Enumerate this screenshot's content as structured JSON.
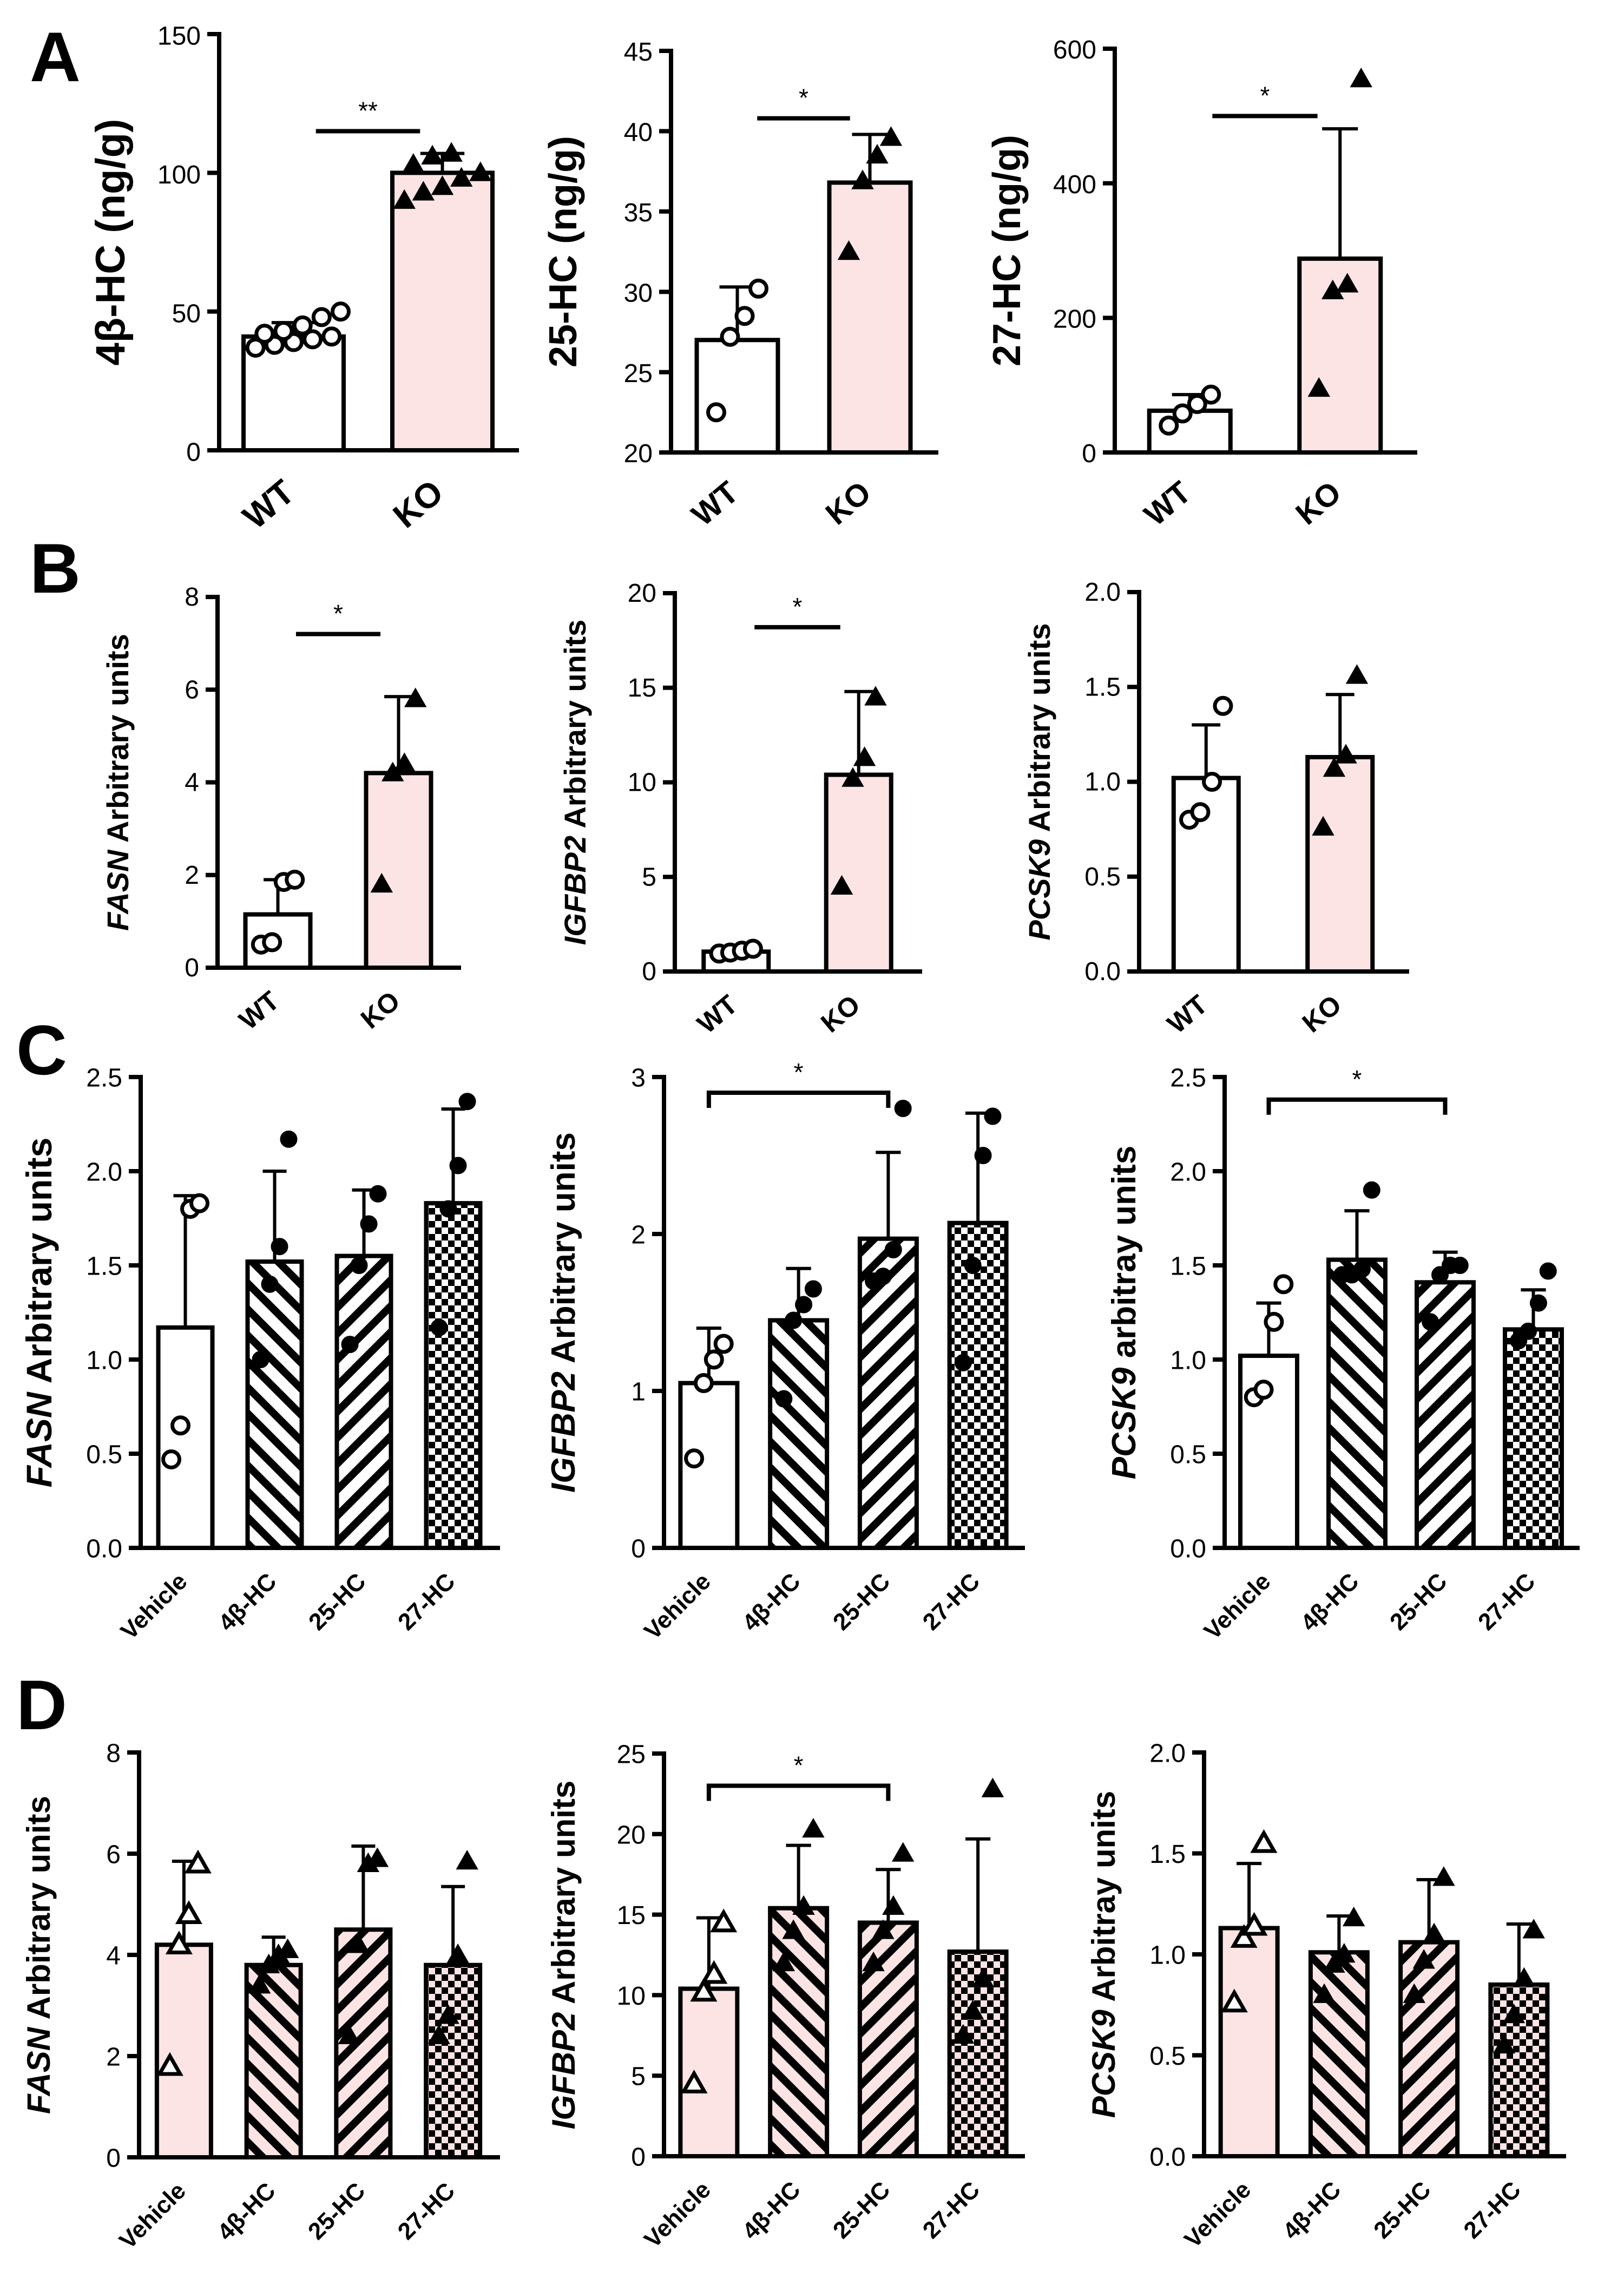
{
  "colors": {
    "pink": "#fce4e4",
    "white": "#ffffff",
    "ink": "#000000"
  },
  "panel_letters": [
    "A",
    "B",
    "C",
    "D"
  ],
  "chart_data": [
    {
      "id": "A1",
      "panel": "A",
      "type": "bar",
      "ylabel_parts": [
        {
          "t": "4β-HC (ng/g)",
          "i": false
        }
      ],
      "ylim": [
        0,
        150
      ],
      "yticks": [
        0,
        50,
        100,
        150
      ],
      "ytick_labels": [
        "0",
        "50",
        "100",
        "150"
      ],
      "categories": [
        "WT",
        "KO"
      ],
      "values": [
        41,
        100
      ],
      "errors": [
        5,
        7
      ],
      "fills": [
        "white",
        "pink"
      ],
      "patterns": [
        "none",
        "none"
      ],
      "markers": [
        "circle-open",
        "triangle-filled"
      ],
      "points": [
        [
          37,
          38,
          39,
          40,
          41,
          42,
          43,
          45,
          48,
          50
        ],
        [
          90,
          93,
          95,
          98,
          100,
          103,
          106,
          107
        ]
      ],
      "significance": [
        {
          "label": "**",
          "from": 0,
          "to": 1,
          "y": 115,
          "style": "line"
        }
      ]
    },
    {
      "id": "A2",
      "panel": "A",
      "type": "bar",
      "ylabel_parts": [
        {
          "t": "25-HC (ng/g)",
          "i": false
        }
      ],
      "ylim": [
        20,
        45
      ],
      "yticks": [
        20,
        25,
        30,
        35,
        40,
        45
      ],
      "ytick_labels": [
        "20",
        "25",
        "30",
        "35",
        "40",
        "45"
      ],
      "categories": [
        "WT",
        "KO"
      ],
      "values": [
        27,
        36.8
      ],
      "errors": [
        3.3,
        3
      ],
      "fills": [
        "white",
        "pink"
      ],
      "patterns": [
        "none",
        "none"
      ],
      "markers": [
        "circle-open",
        "triangle-filled"
      ],
      "points": [
        [
          22.5,
          27.2,
          28.5,
          30.2
        ],
        [
          32.5,
          36.9,
          38.5,
          39.6
        ]
      ],
      "significance": [
        {
          "label": "*",
          "from": 0,
          "to": 1,
          "y": 40.8,
          "style": "line"
        }
      ]
    },
    {
      "id": "A3",
      "panel": "A",
      "type": "bar",
      "ylabel_parts": [
        {
          "t": "27-HC (ng/g)",
          "i": false
        }
      ],
      "ylim": [
        0,
        600
      ],
      "yticks": [
        0,
        200,
        400,
        600
      ],
      "ytick_labels": [
        "0",
        "200",
        "400",
        "600"
      ],
      "categories": [
        "WT",
        "KO"
      ],
      "values": [
        62,
        288
      ],
      "errors": [
        24,
        193
      ],
      "fills": [
        "white",
        "pink"
      ],
      "patterns": [
        "none",
        "none"
      ],
      "markers": [
        "circle-open",
        "triangle-filled"
      ],
      "points": [
        [
          40,
          58,
          72,
          86
        ],
        [
          95,
          240,
          250,
          555
        ]
      ],
      "significance": [
        {
          "label": "*",
          "from": 0,
          "to": 1,
          "y": 500,
          "style": "line"
        }
      ]
    },
    {
      "id": "B1",
      "panel": "B",
      "type": "bar",
      "ylabel_parts": [
        {
          "t": "FASN",
          "i": true
        },
        {
          "t": " Arbitrary units",
          "i": false
        }
      ],
      "ylim": [
        0,
        8
      ],
      "yticks": [
        0,
        2,
        4,
        6,
        8
      ],
      "ytick_labels": [
        "0",
        "2",
        "4",
        "6",
        "8"
      ],
      "categories": [
        "WT",
        "KO"
      ],
      "values": [
        1.15,
        4.2
      ],
      "errors": [
        0.75,
        1.65
      ],
      "fills": [
        "white",
        "pink"
      ],
      "patterns": [
        "none",
        "none"
      ],
      "markers": [
        "circle-open",
        "triangle-filled"
      ],
      "points": [
        [
          0.5,
          0.55,
          1.85,
          1.9
        ],
        [
          1.8,
          4.2,
          4.4,
          5.8
        ]
      ],
      "significance": [
        {
          "label": "*",
          "from": 0,
          "to": 1,
          "y": 7.2,
          "style": "line"
        }
      ]
    },
    {
      "id": "B2",
      "panel": "B",
      "type": "bar",
      "ylabel_parts": [
        {
          "t": "IGFBP2",
          "i": true
        },
        {
          "t": " Arbitrary units",
          "i": false
        }
      ],
      "ylim": [
        0,
        20
      ],
      "yticks": [
        0,
        5,
        10,
        15,
        20
      ],
      "ytick_labels": [
        "0",
        "5",
        "10",
        "15",
        "20"
      ],
      "categories": [
        "WT",
        "KO"
      ],
      "values": [
        1.05,
        10.4
      ],
      "errors": [
        0.2,
        4.4
      ],
      "fills": [
        "white",
        "pink"
      ],
      "patterns": [
        "none",
        "none"
      ],
      "markers": [
        "circle-open",
        "triangle-filled"
      ],
      "points": [
        [
          0.95,
          1.0,
          1.1,
          1.2
        ],
        [
          4.5,
          10.2,
          11.3,
          14.5
        ]
      ],
      "significance": [
        {
          "label": "*",
          "from": 0,
          "to": 1,
          "y": 18.2,
          "style": "line"
        }
      ]
    },
    {
      "id": "B3",
      "panel": "B",
      "type": "bar",
      "ylabel_parts": [
        {
          "t": "PCSK9",
          "i": true
        },
        {
          "t": " Arbitrary units",
          "i": false
        }
      ],
      "ylim": [
        0,
        2
      ],
      "yticks": [
        0,
        0.5,
        1,
        1.5,
        2
      ],
      "ytick_labels": [
        "0.0",
        "0.5",
        "1.0",
        "1.5",
        "2.0"
      ],
      "categories": [
        "WT",
        "KO"
      ],
      "values": [
        1.02,
        1.13
      ],
      "errors": [
        0.28,
        0.33
      ],
      "fills": [
        "white",
        "pink"
      ],
      "patterns": [
        "none",
        "none"
      ],
      "markers": [
        "circle-open",
        "triangle-filled"
      ],
      "points": [
        [
          0.8,
          0.84,
          1.0,
          1.4
        ],
        [
          0.76,
          1.07,
          1.14,
          1.56
        ]
      ],
      "significance": []
    },
    {
      "id": "C1",
      "panel": "C",
      "type": "bar",
      "ylabel_parts": [
        {
          "t": "FASN",
          "i": true
        },
        {
          "t": "  Arbitrary units",
          "i": false
        }
      ],
      "ylim": [
        0,
        2.5
      ],
      "yticks": [
        0,
        0.5,
        1,
        1.5,
        2,
        2.5
      ],
      "ytick_labels": [
        "0.0",
        "0.5",
        "1.0",
        "1.5",
        "2.0",
        "2.5"
      ],
      "categories": [
        "Vehicle",
        "4β-HC",
        "25-HC",
        "27-HC"
      ],
      "values": [
        1.17,
        1.52,
        1.55,
        1.83
      ],
      "errors": [
        0.7,
        0.48,
        0.35,
        0.5
      ],
      "fills": [
        "white",
        "white",
        "white",
        "white"
      ],
      "patterns": [
        "none",
        "bs",
        "fs",
        "check"
      ],
      "markers": [
        "circle-open",
        "circle-filled",
        "circle-filled",
        "circle-filled"
      ],
      "points": [
        [
          0.47,
          0.65,
          1.8,
          1.83
        ],
        [
          1.0,
          1.4,
          1.6,
          2.17
        ],
        [
          1.08,
          1.5,
          1.72,
          1.88
        ],
        [
          1.17,
          1.8,
          2.03,
          2.37
        ]
      ],
      "significance": []
    },
    {
      "id": "C2",
      "panel": "C",
      "type": "bar",
      "ylabel_parts": [
        {
          "t": "IGFBP2",
          "i": true
        },
        {
          "t": " Arbitrary units",
          "i": false
        }
      ],
      "ylim": [
        0,
        3
      ],
      "yticks": [
        0,
        1,
        2,
        3
      ],
      "ytick_labels": [
        "0",
        "1",
        "2",
        "3"
      ],
      "categories": [
        "Vehicle",
        "4β-HC",
        "25-HC",
        "27-HC"
      ],
      "values": [
        1.05,
        1.45,
        1.97,
        2.07
      ],
      "errors": [
        0.35,
        0.33,
        0.55,
        0.7
      ],
      "fills": [
        "white",
        "white",
        "white",
        "white"
      ],
      "patterns": [
        "none",
        "bs",
        "fs",
        "check"
      ],
      "markers": [
        "circle-open",
        "circle-filled",
        "circle-filled",
        "circle-filled"
      ],
      "points": [
        [
          0.57,
          1.05,
          1.2,
          1.3
        ],
        [
          0.95,
          1.45,
          1.55,
          1.65
        ],
        [
          1.7,
          1.73,
          1.9,
          2.8
        ],
        [
          1.18,
          1.8,
          2.5,
          2.75
        ]
      ],
      "significance": [
        {
          "label": "*",
          "from": 0,
          "to": 2,
          "y": 2.9,
          "style": "bracket"
        }
      ]
    },
    {
      "id": "C3",
      "panel": "C",
      "type": "bar",
      "ylabel_parts": [
        {
          "t": "PCSK9",
          "i": true
        },
        {
          "t": " arbitray units",
          "i": false
        }
      ],
      "ylim": [
        0,
        2.5
      ],
      "yticks": [
        0,
        0.5,
        1,
        1.5,
        2,
        2.5
      ],
      "ytick_labels": [
        "0.0",
        "0.5",
        "1.0",
        "1.5",
        "2.0",
        "2.5"
      ],
      "categories": [
        "Vehicle",
        "4β-HC",
        "25-HC",
        "27-HC"
      ],
      "values": [
        1.02,
        1.53,
        1.41,
        1.16
      ],
      "errors": [
        0.28,
        0.26,
        0.16,
        0.21
      ],
      "fills": [
        "white",
        "white",
        "white",
        "white"
      ],
      "patterns": [
        "none",
        "bs",
        "fs",
        "check"
      ],
      "markers": [
        "circle-open",
        "circle-filled",
        "circle-filled",
        "circle-filled"
      ],
      "points": [
        [
          0.8,
          0.84,
          1.2,
          1.4
        ],
        [
          1.45,
          1.45,
          1.48,
          1.9
        ],
        [
          1.2,
          1.45,
          1.5,
          1.5
        ],
        [
          1.1,
          1.15,
          1.3,
          1.47
        ]
      ],
      "significance": [
        {
          "label": "*",
          "from": 0,
          "to": 2,
          "y": 2.38,
          "style": "bracket"
        }
      ]
    },
    {
      "id": "D1",
      "panel": "D",
      "type": "bar",
      "ylabel_parts": [
        {
          "t": "FASN",
          "i": true
        },
        {
          "t": " Arbitrary units",
          "i": false
        }
      ],
      "ylim": [
        0,
        8
      ],
      "yticks": [
        0,
        2,
        4,
        6,
        8
      ],
      "ytick_labels": [
        "0",
        "2",
        "4",
        "6",
        "8"
      ],
      "categories": [
        "Vehicle",
        "4β-HC",
        "25-HC",
        "27-HC"
      ],
      "values": [
        4.2,
        3.8,
        4.5,
        3.8
      ],
      "errors": [
        1.65,
        0.55,
        1.65,
        1.55
      ],
      "fills": [
        "pink",
        "pink",
        "pink",
        "pink"
      ],
      "patterns": [
        "none",
        "bs",
        "fs",
        "check"
      ],
      "markers": [
        "triangle-open",
        "triangle-filled",
        "triangle-filled",
        "triangle-filled"
      ],
      "points": [
        [
          1.8,
          4.2,
          4.8,
          5.8
        ],
        [
          3.4,
          3.8,
          4.0,
          4.1
        ],
        [
          2.4,
          4.2,
          5.8,
          5.9
        ],
        [
          2.4,
          2.8,
          4.0,
          5.85
        ]
      ],
      "significance": []
    },
    {
      "id": "D2",
      "panel": "D",
      "type": "bar",
      "ylabel_parts": [
        {
          "t": "IGFBP2",
          "i": true
        },
        {
          "t": " Arbitrary units",
          "i": false
        }
      ],
      "ylim": [
        0,
        25
      ],
      "yticks": [
        0,
        5,
        10,
        15,
        20,
        25
      ],
      "ytick_labels": [
        "0",
        "5",
        "10",
        "15",
        "20",
        "25"
      ],
      "categories": [
        "Vehicle",
        "4β-HC",
        "25-HC",
        "27-HC"
      ],
      "values": [
        10.4,
        15.4,
        14.5,
        12.7
      ],
      "errors": [
        4.4,
        3.9,
        3.3,
        7.0
      ],
      "fills": [
        "pink",
        "pink",
        "pink",
        "pink"
      ],
      "patterns": [
        "none",
        "bs",
        "fs",
        "check"
      ],
      "markers": [
        "triangle-open",
        "triangle-filled",
        "triangle-filled",
        "triangle-filled"
      ],
      "points": [
        [
          4.5,
          10.2,
          11.3,
          14.5
        ],
        [
          12.0,
          14.0,
          15.5,
          20.3
        ],
        [
          12.0,
          14.0,
          15.5,
          18.8
        ],
        [
          7.5,
          9.0,
          11.0,
          22.8
        ]
      ],
      "significance": [
        {
          "label": "*",
          "from": 0,
          "to": 2,
          "y": 23,
          "style": "bracket"
        }
      ]
    },
    {
      "id": "D3",
      "panel": "D",
      "type": "bar",
      "ylabel_parts": [
        {
          "t": "PCSK9",
          "i": true
        },
        {
          "t": " Arbitray units",
          "i": false
        }
      ],
      "ylim": [
        0,
        2
      ],
      "yticks": [
        0,
        0.5,
        1,
        1.5,
        2
      ],
      "ytick_labels": [
        "0.0",
        "0.5",
        "1.0",
        "1.5",
        "2.0"
      ],
      "categories": [
        "Vehicle",
        "4β-HC",
        "25-HC",
        "27-HC"
      ],
      "values": [
        1.13,
        1.01,
        1.06,
        0.85
      ],
      "errors": [
        0.32,
        0.18,
        0.31,
        0.3
      ],
      "fills": [
        "pink",
        "pink",
        "pink",
        "pink"
      ],
      "patterns": [
        "none",
        "bs",
        "fs",
        "check"
      ],
      "markers": [
        "triangle-open",
        "triangle-filled",
        "triangle-filled",
        "triangle-filled"
      ],
      "points": [
        [
          0.76,
          1.08,
          1.14,
          1.55
        ],
        [
          0.8,
          0.95,
          1.0,
          1.18
        ],
        [
          0.8,
          0.97,
          1.1,
          1.38
        ],
        [
          0.55,
          0.7,
          0.88,
          1.12
        ]
      ],
      "significance": []
    }
  ]
}
